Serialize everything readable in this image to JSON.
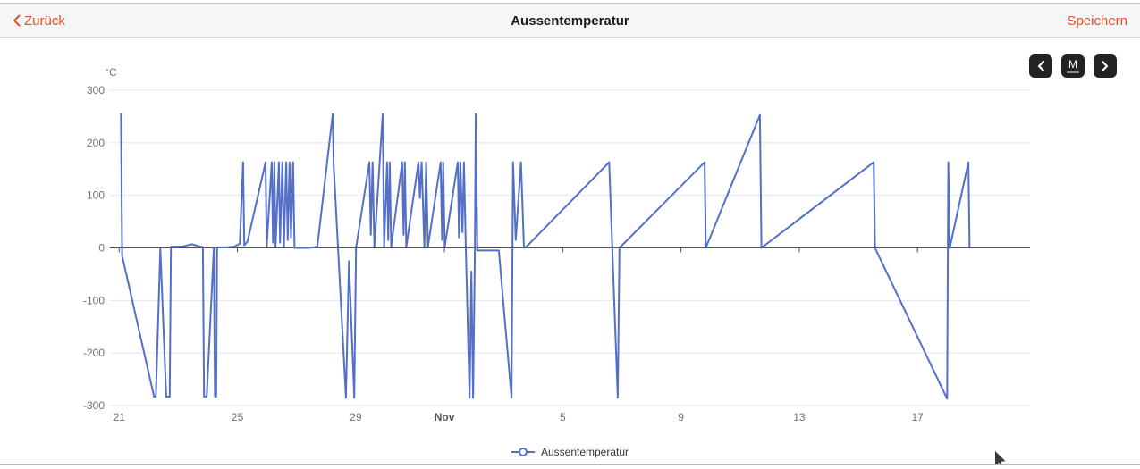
{
  "header": {
    "back_label": "Zurück",
    "title": "Aussentemperatur",
    "save_label": "Speichern",
    "accent_color": "#e75125"
  },
  "toolbar": {
    "period_label": "M",
    "button_bg": "#232323"
  },
  "legend": {
    "label": "Aussentemperatur"
  },
  "chart_data": {
    "type": "line",
    "title": "",
    "unit_label": "°C",
    "ylabel": "°C",
    "ylim": [
      -300,
      300
    ],
    "y_ticks": [
      300,
      200,
      100,
      0,
      -100,
      -200,
      -300
    ],
    "x_unit": "days",
    "xlim": [
      -0.3,
      30.8
    ],
    "x_ticks": [
      {
        "day": 0,
        "label": "21",
        "bold": false
      },
      {
        "day": 4,
        "label": "25",
        "bold": false
      },
      {
        "day": 8,
        "label": "29",
        "bold": false
      },
      {
        "day": 11,
        "label": "Nov",
        "bold": true
      },
      {
        "day": 15,
        "label": "5",
        "bold": false
      },
      {
        "day": 19,
        "label": "9",
        "bold": false
      },
      {
        "day": 23,
        "label": "13",
        "bold": false
      },
      {
        "day": 27,
        "label": "17",
        "bold": false
      }
    ],
    "grid": true,
    "legend_position": "bottom",
    "axis_on_zero": true,
    "colors": {
      "gridline": "#e0e6f1",
      "zero_axis": "#4d4d4d",
      "tick_label": "#6e7079"
    },
    "series": [
      {
        "name": "Aussentemperatur",
        "color": "#5470c6",
        "points": [
          [
            0.06,
            255
          ],
          [
            0.1,
            -15
          ],
          [
            1.18,
            -283
          ],
          [
            1.24,
            -283
          ],
          [
            1.39,
            -2
          ],
          [
            1.59,
            -283
          ],
          [
            1.71,
            -283
          ],
          [
            1.75,
            2
          ],
          [
            2.18,
            3
          ],
          [
            2.45,
            7
          ],
          [
            2.7,
            3
          ],
          [
            2.83,
            1
          ],
          [
            2.87,
            -283
          ],
          [
            2.96,
            -283
          ],
          [
            3.2,
            -1
          ],
          [
            3.24,
            -283
          ],
          [
            3.28,
            -283
          ],
          [
            3.31,
            1
          ],
          [
            3.6,
            1
          ],
          [
            3.88,
            2
          ],
          [
            4.08,
            8
          ],
          [
            4.19,
            163
          ],
          [
            4.23,
            5
          ],
          [
            4.34,
            12
          ],
          [
            4.95,
            163
          ],
          [
            4.99,
            2
          ],
          [
            5.16,
            163
          ],
          [
            5.2,
            10
          ],
          [
            5.25,
            163
          ],
          [
            5.29,
            2
          ],
          [
            5.4,
            163
          ],
          [
            5.44,
            10
          ],
          [
            5.52,
            163
          ],
          [
            5.57,
            2
          ],
          [
            5.65,
            163
          ],
          [
            5.7,
            15
          ],
          [
            5.76,
            163
          ],
          [
            5.81,
            20
          ],
          [
            5.88,
            163
          ],
          [
            5.93,
            0
          ],
          [
            6.4,
            0
          ],
          [
            6.7,
            2
          ],
          [
            7.22,
            255
          ],
          [
            7.25,
            160
          ],
          [
            7.67,
            -285
          ],
          [
            7.77,
            -25
          ],
          [
            7.95,
            -285
          ],
          [
            8.01,
            0
          ],
          [
            8.46,
            163
          ],
          [
            8.51,
            25
          ],
          [
            8.57,
            163
          ],
          [
            8.63,
            2
          ],
          [
            8.91,
            255
          ],
          [
            8.96,
            2
          ],
          [
            9.06,
            163
          ],
          [
            9.1,
            15
          ],
          [
            9.15,
            163
          ],
          [
            9.2,
            2
          ],
          [
            9.57,
            163
          ],
          [
            9.62,
            25
          ],
          [
            9.66,
            163
          ],
          [
            9.71,
            2
          ],
          [
            10.12,
            163
          ],
          [
            10.17,
            95
          ],
          [
            10.23,
            163
          ],
          [
            10.32,
            0
          ],
          [
            10.38,
            163
          ],
          [
            10.44,
            2
          ],
          [
            10.87,
            163
          ],
          [
            10.92,
            15
          ],
          [
            10.96,
            163
          ],
          [
            11.01,
            2
          ],
          [
            11.45,
            163
          ],
          [
            11.49,
            20
          ],
          [
            11.54,
            163
          ],
          [
            11.61,
            30
          ],
          [
            11.66,
            163
          ],
          [
            11.72,
            5
          ],
          [
            11.85,
            -285
          ],
          [
            11.91,
            -45
          ],
          [
            11.97,
            -285
          ],
          [
            12.03,
            -10
          ],
          [
            12.06,
            255
          ],
          [
            12.11,
            -5
          ],
          [
            12.84,
            -5
          ],
          [
            13.27,
            -285
          ],
          [
            13.32,
            163
          ],
          [
            13.41,
            15
          ],
          [
            13.59,
            163
          ],
          [
            13.69,
            0
          ],
          [
            13.75,
            1
          ],
          [
            16.57,
            163
          ],
          [
            16.86,
            -285
          ],
          [
            16.92,
            0
          ],
          [
            19.8,
            163
          ],
          [
            19.84,
            0
          ],
          [
            21.67,
            253
          ],
          [
            21.72,
            0
          ],
          [
            25.52,
            163
          ],
          [
            25.56,
            0
          ],
          [
            28.0,
            -287
          ],
          [
            28.04,
            163
          ],
          [
            28.09,
            0
          ],
          [
            28.72,
            163
          ],
          [
            28.76,
            0
          ]
        ]
      }
    ]
  }
}
